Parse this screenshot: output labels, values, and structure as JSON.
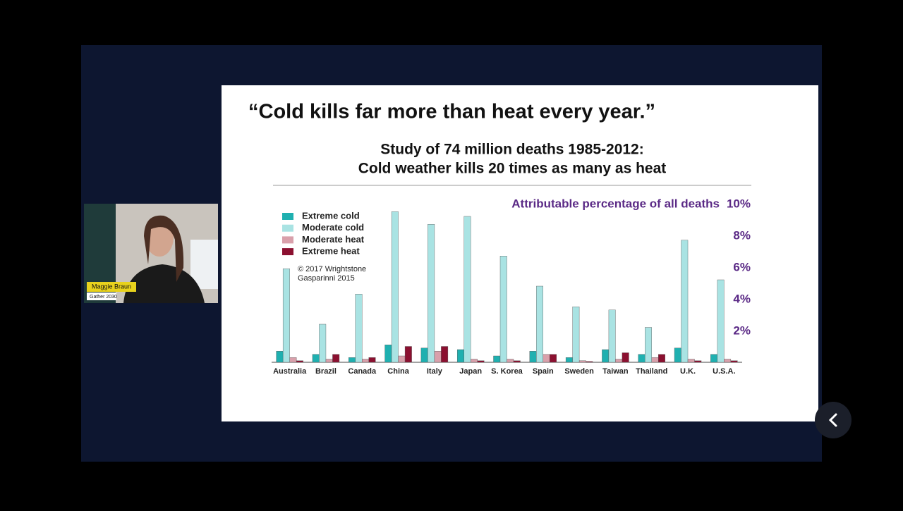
{
  "participant": {
    "name": "Maggie Braun",
    "org": "Gather 2030"
  },
  "slide": {
    "heading": "“Cold kills far more than heat every year.”"
  },
  "chart_data": {
    "type": "bar",
    "title": [
      "Study of 74 million deaths 1985-2012:",
      "Cold weather kills 20 times as many as heat"
    ],
    "y_label": "Attributable percentage of all deaths",
    "source": [
      "© 2017 Wrightstone",
      "Gasparinni 2015"
    ],
    "categories": [
      "Australia",
      "Brazil",
      "Canada",
      "China",
      "Italy",
      "Japan",
      "S. Korea",
      "Spain",
      "Sweden",
      "Taiwan",
      "Thailand",
      "U.K.",
      "U.S.A."
    ],
    "series": [
      {
        "name": "Extreme cold",
        "color": "#1fb0b0",
        "values": [
          0.7,
          0.5,
          0.3,
          1.1,
          0.9,
          0.8,
          0.4,
          0.7,
          0.3,
          0.8,
          0.5,
          0.9,
          0.5
        ]
      },
      {
        "name": "Moderate cold",
        "color": "#a9e3e3",
        "values": [
          5.9,
          2.4,
          4.3,
          9.5,
          8.7,
          9.2,
          6.7,
          4.8,
          3.5,
          3.3,
          2.2,
          7.7,
          5.2
        ]
      },
      {
        "name": "Moderate heat",
        "color": "#d9a0ab",
        "values": [
          0.3,
          0.2,
          0.2,
          0.4,
          0.7,
          0.2,
          0.2,
          0.5,
          0.1,
          0.2,
          0.3,
          0.2,
          0.2
        ]
      },
      {
        "name": "Extreme heat",
        "color": "#8b1030",
        "values": [
          0.1,
          0.5,
          0.3,
          1.0,
          1.0,
          0.1,
          0.1,
          0.5,
          0.05,
          0.6,
          0.5,
          0.1,
          0.1
        ]
      }
    ],
    "ylim": [
      0,
      10
    ],
    "yticks": [
      {
        "value": 2,
        "label": "2%"
      },
      {
        "value": 4,
        "label": "4%"
      },
      {
        "value": 6,
        "label": "6%"
      },
      {
        "value": 8,
        "label": "8%"
      },
      {
        "value": 10,
        "label": "10%"
      }
    ],
    "grid": false
  }
}
